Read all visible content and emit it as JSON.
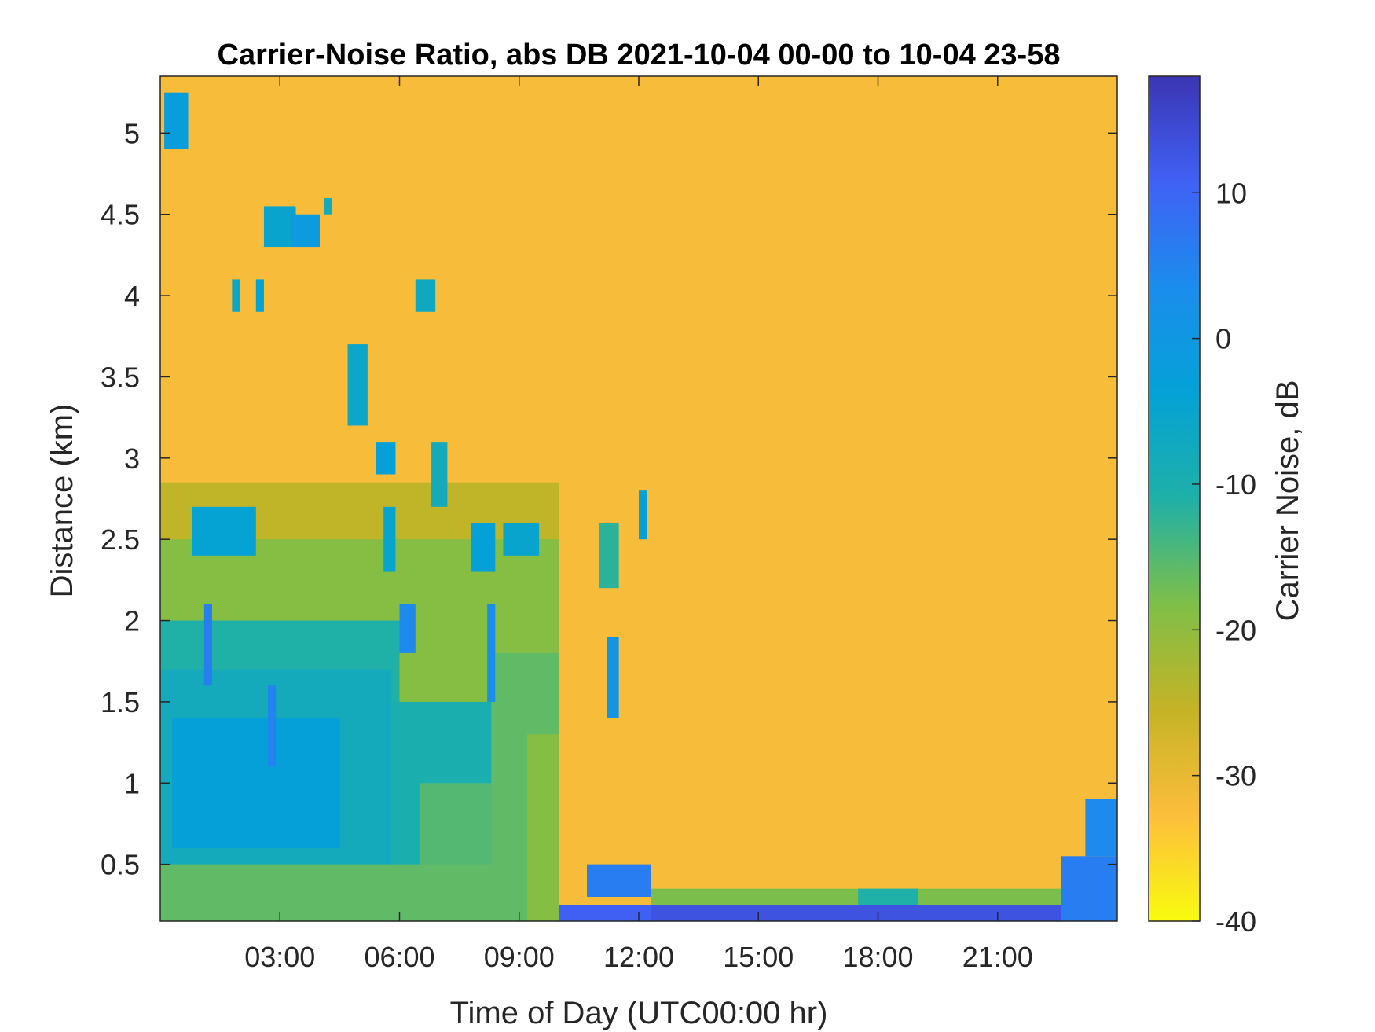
{
  "chart_data": {
    "type": "heatmap",
    "title": "Carrier-Noise Ratio, abs DB 2021-10-04 00-00 to 10-04 23-58",
    "xlabel": "Time of Day (UTC00:00 hr)",
    "ylabel": "Distance (km)",
    "colorbar_label": "Carrier Noise, dB",
    "x_unit": "hours",
    "xlim": [
      0,
      24
    ],
    "ylim": [
      0.15,
      5.35
    ],
    "clim": [
      -40,
      18
    ],
    "colormap": "parula-reversed",
    "colormap_stops": [
      "#f9fb0e",
      "#fdbe3c",
      "#c5b326",
      "#7fbf48",
      "#1fb0a8",
      "#04a2d6",
      "#1b8ded",
      "#4061f5",
      "#3b35b2"
    ],
    "x_ticks": [
      {
        "value": 3,
        "label": "03:00"
      },
      {
        "value": 6,
        "label": "06:00"
      },
      {
        "value": 9,
        "label": "09:00"
      },
      {
        "value": 12,
        "label": "12:00"
      },
      {
        "value": 15,
        "label": "15:00"
      },
      {
        "value": 18,
        "label": "18:00"
      },
      {
        "value": 21,
        "label": "21:00"
      }
    ],
    "y_ticks": [
      {
        "value": 0.5,
        "label": "0.5"
      },
      {
        "value": 1,
        "label": "1"
      },
      {
        "value": 1.5,
        "label": "1.5"
      },
      {
        "value": 2,
        "label": "2"
      },
      {
        "value": 2.5,
        "label": "2.5"
      },
      {
        "value": 3,
        "label": "3"
      },
      {
        "value": 3.5,
        "label": "3.5"
      },
      {
        "value": 4,
        "label": "4"
      },
      {
        "value": 4.5,
        "label": "4.5"
      },
      {
        "value": 5,
        "label": "5"
      }
    ],
    "colorbar_ticks": [
      {
        "value": 10,
        "label": "10"
      },
      {
        "value": 0,
        "label": "0"
      },
      {
        "value": -10,
        "label": "-10"
      },
      {
        "value": -20,
        "label": "-20"
      },
      {
        "value": -30,
        "label": "-30"
      },
      {
        "value": -40,
        "label": "-40"
      }
    ],
    "background_value": -32,
    "regions": [
      {
        "x": [
          0,
          10.0
        ],
        "y": [
          0.15,
          2.85
        ],
        "value": -19
      },
      {
        "x": [
          0,
          10.0
        ],
        "y": [
          2.5,
          2.85
        ],
        "value": -25
      },
      {
        "x": [
          0,
          6.0
        ],
        "y": [
          0.15,
          2.0
        ],
        "value": -11
      },
      {
        "x": [
          0,
          5.8
        ],
        "y": [
          0.15,
          1.7
        ],
        "value": -8
      },
      {
        "x": [
          0.3,
          4.5
        ],
        "y": [
          0.6,
          1.4
        ],
        "value": -3
      },
      {
        "x": [
          5.8,
          8.5
        ],
        "y": [
          0.15,
          1.5
        ],
        "value": -10
      },
      {
        "x": [
          6.5,
          8.3
        ],
        "y": [
          0.15,
          1.0
        ],
        "value": -15
      },
      {
        "x": [
          8.3,
          10.0
        ],
        "y": [
          0.15,
          1.8
        ],
        "value": -16
      },
      {
        "x": [
          0,
          10.0
        ],
        "y": [
          0.15,
          0.5
        ],
        "value": -16
      },
      {
        "x": [
          9.2,
          10.0
        ],
        "y": [
          0.15,
          1.3
        ],
        "value": -19
      },
      {
        "x": [
          0.1,
          0.7
        ],
        "y": [
          4.9,
          5.25
        ],
        "value": -2
      },
      {
        "x": [
          2.6,
          3.4
        ],
        "y": [
          4.3,
          4.55
        ],
        "value": -5
      },
      {
        "x": [
          3.3,
          4.0
        ],
        "y": [
          4.3,
          4.5
        ],
        "value": -1
      },
      {
        "x": [
          1.8,
          2.0
        ],
        "y": [
          3.9,
          4.1
        ],
        "value": -6
      },
      {
        "x": [
          2.4,
          2.6
        ],
        "y": [
          3.9,
          4.1
        ],
        "value": -4
      },
      {
        "x": [
          4.1,
          4.3
        ],
        "y": [
          4.5,
          4.6
        ],
        "value": -8
      },
      {
        "x": [
          6.4,
          6.9
        ],
        "y": [
          3.9,
          4.1
        ],
        "value": -7
      },
      {
        "x": [
          4.7,
          5.2
        ],
        "y": [
          3.2,
          3.7
        ],
        "value": -6
      },
      {
        "x": [
          5.4,
          5.9
        ],
        "y": [
          2.9,
          3.1
        ],
        "value": -3
      },
      {
        "x": [
          6.8,
          7.2
        ],
        "y": [
          2.7,
          3.1
        ],
        "value": -8
      },
      {
        "x": [
          0.8,
          2.4
        ],
        "y": [
          2.4,
          2.7
        ],
        "value": -4
      },
      {
        "x": [
          5.6,
          5.9
        ],
        "y": [
          2.3,
          2.7
        ],
        "value": -5
      },
      {
        "x": [
          7.8,
          8.4
        ],
        "y": [
          2.3,
          2.6
        ],
        "value": -3
      },
      {
        "x": [
          8.6,
          9.5
        ],
        "y": [
          2.4,
          2.6
        ],
        "value": -5
      },
      {
        "x": [
          8.2,
          8.4
        ],
        "y": [
          1.5,
          2.1
        ],
        "value": 3
      },
      {
        "x": [
          6.0,
          6.4
        ],
        "y": [
          1.8,
          2.1
        ],
        "value": 4
      },
      {
        "x": [
          2.7,
          2.9
        ],
        "y": [
          1.1,
          1.6
        ],
        "value": 5
      },
      {
        "x": [
          1.1,
          1.3
        ],
        "y": [
          1.6,
          2.1
        ],
        "value": 6
      },
      {
        "x": [
          11.2,
          11.5
        ],
        "y": [
          1.4,
          1.9
        ],
        "value": 1
      },
      {
        "x": [
          12.0,
          12.2
        ],
        "y": [
          2.5,
          2.8
        ],
        "value": -3
      },
      {
        "x": [
          11.0,
          11.5
        ],
        "y": [
          2.2,
          2.6
        ],
        "value": -12
      },
      {
        "x": [
          10.7,
          12.3
        ],
        "y": [
          0.3,
          0.5
        ],
        "value": 6
      },
      {
        "x": [
          10.0,
          12.3
        ],
        "y": [
          0.15,
          0.25
        ],
        "value": 11
      },
      {
        "x": [
          12.3,
          22.6
        ],
        "y": [
          0.25,
          0.35
        ],
        "value": -18
      },
      {
        "x": [
          17.5,
          19.0
        ],
        "y": [
          0.25,
          0.35
        ],
        "value": -11
      },
      {
        "x": [
          12.3,
          22.6
        ],
        "y": [
          0.15,
          0.25
        ],
        "value": 13
      },
      {
        "x": [
          22.6,
          24.0
        ],
        "y": [
          0.15,
          0.55
        ],
        "value": 6
      },
      {
        "x": [
          23.2,
          24.0
        ],
        "y": [
          0.55,
          0.9
        ],
        "value": 4
      }
    ]
  }
}
